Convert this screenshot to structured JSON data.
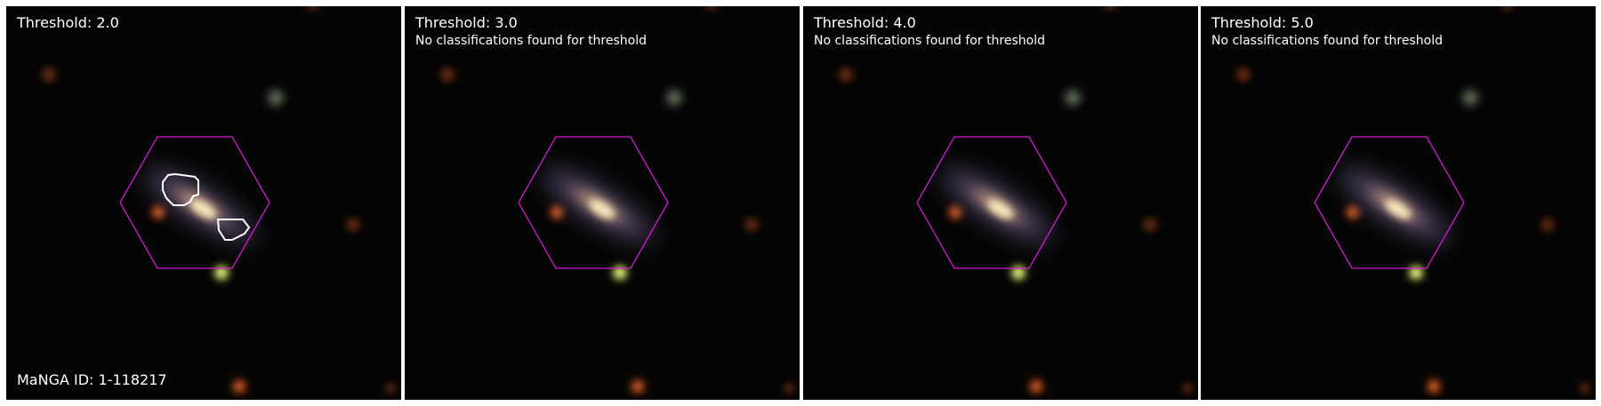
{
  "panels": [
    {
      "title": "Threshold: 2.0",
      "note": "",
      "footer": "MaNGA ID: 1-118217"
    },
    {
      "title": "Threshold: 3.0",
      "note": "No classifications found for threshold",
      "footer": ""
    },
    {
      "title": "Threshold: 4.0",
      "note": "No classifications found for threshold",
      "footer": ""
    },
    {
      "title": "Threshold: 5.0",
      "note": "No classifications found for threshold",
      "footer": ""
    }
  ],
  "colors": {
    "hexagon": "#d21bd2",
    "contour": "#ffffff",
    "background": "#050505"
  }
}
